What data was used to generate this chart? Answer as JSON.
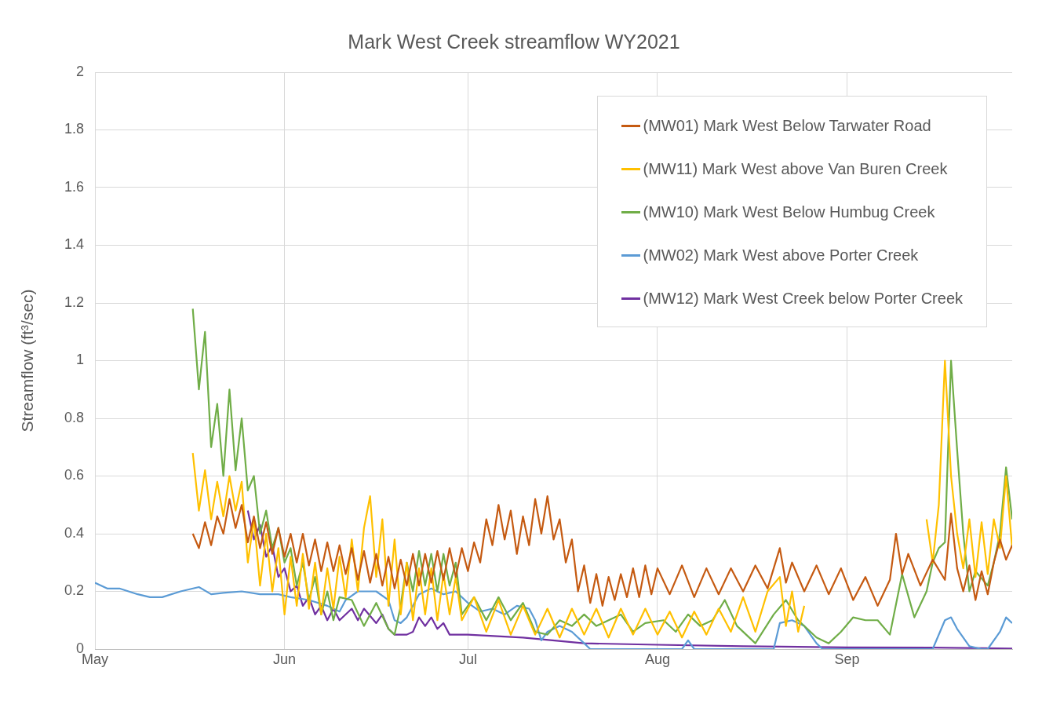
{
  "chart_data": {
    "type": "line",
    "title": "Mark West Creek streamflow WY2021",
    "ylabel": "Streamflow (ft³/sec)",
    "xlim": [
      "2021-05-01",
      "2021-09-28"
    ],
    "xticks": [
      {
        "value": "2021-05-01",
        "label": "May"
      },
      {
        "value": "2021-06-01",
        "label": "Jun"
      },
      {
        "value": "2021-07-01",
        "label": "Jul"
      },
      {
        "value": "2021-08-01",
        "label": "Aug"
      },
      {
        "value": "2021-09-01",
        "label": "Sep"
      }
    ],
    "ylim": [
      0,
      2
    ],
    "yticks": [
      0,
      0.2,
      0.4,
      0.6,
      0.8,
      1,
      1.2,
      1.4,
      1.6,
      1.8,
      2
    ],
    "grid": true,
    "legend": "top right",
    "marker": "none",
    "line_style": "solid",
    "series": [
      {
        "name": "(MW01) Mark West Below Tarwater Road",
        "color": "#c55a11",
        "x": [
          "2021-05-17",
          "2021-05-18",
          "2021-05-19",
          "2021-05-20",
          "2021-05-21",
          "2021-05-22",
          "2021-05-23",
          "2021-05-24",
          "2021-05-25",
          "2021-05-26",
          "2021-05-27",
          "2021-05-28",
          "2021-05-29",
          "2021-05-30",
          "2021-05-31",
          "2021-06-01",
          "2021-06-02",
          "2021-06-03",
          "2021-06-04",
          "2021-06-05",
          "2021-06-06",
          "2021-06-07",
          "2021-06-08",
          "2021-06-09",
          "2021-06-10",
          "2021-06-11",
          "2021-06-12",
          "2021-06-13",
          "2021-06-14",
          "2021-06-15",
          "2021-06-16",
          "2021-06-17",
          "2021-06-18",
          "2021-06-19",
          "2021-06-20",
          "2021-06-21",
          "2021-06-22",
          "2021-06-23",
          "2021-06-24",
          "2021-06-25",
          "2021-06-26",
          "2021-06-27",
          "2021-06-28",
          "2021-06-29",
          "2021-06-30",
          "2021-07-01",
          "2021-07-02",
          "2021-07-03",
          "2021-07-04",
          "2021-07-05",
          "2021-07-06",
          "2021-07-07",
          "2021-07-08",
          "2021-07-09",
          "2021-07-10",
          "2021-07-11",
          "2021-07-12",
          "2021-07-13",
          "2021-07-14",
          "2021-07-15",
          "2021-07-16",
          "2021-07-17",
          "2021-07-18",
          "2021-07-19",
          "2021-07-20",
          "2021-07-21",
          "2021-07-22",
          "2021-07-23",
          "2021-07-24",
          "2021-07-25",
          "2021-07-26",
          "2021-07-27",
          "2021-07-28",
          "2021-07-29",
          "2021-07-30",
          "2021-07-31",
          "2021-08-01",
          "2021-08-03",
          "2021-08-05",
          "2021-08-07",
          "2021-08-09",
          "2021-08-11",
          "2021-08-13",
          "2021-08-15",
          "2021-08-17",
          "2021-08-19",
          "2021-08-21",
          "2021-08-22",
          "2021-08-23",
          "2021-08-25",
          "2021-08-27",
          "2021-08-29",
          "2021-08-31",
          "2021-09-02",
          "2021-09-04",
          "2021-09-06",
          "2021-09-08",
          "2021-09-09",
          "2021-09-10",
          "2021-09-11",
          "2021-09-13",
          "2021-09-15",
          "2021-09-17",
          "2021-09-18",
          "2021-09-19",
          "2021-09-20",
          "2021-09-21",
          "2021-09-22",
          "2021-09-23",
          "2021-09-24",
          "2021-09-25",
          "2021-09-26",
          "2021-09-27",
          "2021-09-28"
        ],
        "values": [
          0.4,
          0.35,
          0.44,
          0.36,
          0.46,
          0.4,
          0.52,
          0.42,
          0.5,
          0.37,
          0.46,
          0.35,
          0.44,
          0.33,
          0.42,
          0.32,
          0.4,
          0.3,
          0.4,
          0.29,
          0.38,
          0.27,
          0.37,
          0.27,
          0.36,
          0.26,
          0.35,
          0.24,
          0.34,
          0.23,
          0.33,
          0.22,
          0.32,
          0.21,
          0.31,
          0.22,
          0.33,
          0.22,
          0.33,
          0.23,
          0.34,
          0.24,
          0.35,
          0.25,
          0.35,
          0.27,
          0.37,
          0.3,
          0.45,
          0.36,
          0.5,
          0.38,
          0.48,
          0.33,
          0.46,
          0.36,
          0.52,
          0.4,
          0.53,
          0.38,
          0.45,
          0.3,
          0.38,
          0.2,
          0.29,
          0.16,
          0.26,
          0.15,
          0.25,
          0.17,
          0.26,
          0.18,
          0.28,
          0.18,
          0.29,
          0.19,
          0.28,
          0.19,
          0.29,
          0.18,
          0.28,
          0.19,
          0.28,
          0.2,
          0.29,
          0.21,
          0.35,
          0.23,
          0.3,
          0.2,
          0.29,
          0.19,
          0.28,
          0.17,
          0.25,
          0.15,
          0.24,
          0.4,
          0.26,
          0.33,
          0.22,
          0.31,
          0.24,
          0.47,
          0.28,
          0.2,
          0.29,
          0.17,
          0.27,
          0.19,
          0.3,
          0.38,
          0.31,
          0.36
        ]
      },
      {
        "name": "(MW11) Mark West above Van Buren Creek",
        "color": "#ffc000",
        "x": [
          "2021-05-17",
          "2021-05-18",
          "2021-05-19",
          "2021-05-20",
          "2021-05-21",
          "2021-05-22",
          "2021-05-23",
          "2021-05-24",
          "2021-05-25",
          "2021-05-26",
          "2021-05-27",
          "2021-05-28",
          "2021-05-29",
          "2021-05-30",
          "2021-05-31",
          "2021-06-01",
          "2021-06-02",
          "2021-06-03",
          "2021-06-04",
          "2021-06-05",
          "2021-06-06",
          "2021-06-07",
          "2021-06-08",
          "2021-06-09",
          "2021-06-10",
          "2021-06-11",
          "2021-06-12",
          "2021-06-13",
          "2021-06-14",
          "2021-06-15",
          "2021-06-16",
          "2021-06-17",
          "2021-06-18",
          "2021-06-19",
          "2021-06-20",
          "2021-06-21",
          "2021-06-22",
          "2021-06-23",
          "2021-06-24",
          "2021-06-25",
          "2021-06-26",
          "2021-06-27",
          "2021-06-28",
          "2021-06-29",
          "2021-06-30",
          "2021-07-02",
          "2021-07-04",
          "2021-07-06",
          "2021-07-08",
          "2021-07-10",
          "2021-07-12",
          "2021-07-14",
          "2021-07-16",
          "2021-07-18",
          "2021-07-20",
          "2021-07-22",
          "2021-07-24",
          "2021-07-26",
          "2021-07-28",
          "2021-07-30",
          "2021-08-01",
          "2021-08-03",
          "2021-08-05",
          "2021-08-07",
          "2021-08-09",
          "2021-08-11",
          "2021-08-13",
          "2021-08-15",
          "2021-08-17",
          "2021-08-19",
          "2021-08-21",
          "2021-08-22",
          "2021-08-23",
          "2021-08-24",
          "2021-08-25",
          "2021-09-01",
          "2021-09-14",
          "2021-09-15",
          "2021-09-16",
          "2021-09-17",
          "2021-09-18",
          "2021-09-19",
          "2021-09-20",
          "2021-09-21",
          "2021-09-22",
          "2021-09-23",
          "2021-09-24",
          "2021-09-25",
          "2021-09-26",
          "2021-09-27",
          "2021-09-28"
        ],
        "values": [
          0.68,
          0.48,
          0.62,
          0.45,
          0.58,
          0.46,
          0.6,
          0.48,
          0.58,
          0.3,
          0.45,
          0.22,
          0.4,
          0.2,
          0.35,
          0.12,
          0.32,
          0.15,
          0.33,
          0.14,
          0.3,
          0.12,
          0.28,
          0.14,
          0.32,
          0.18,
          0.38,
          0.2,
          0.42,
          0.53,
          0.25,
          0.45,
          0.15,
          0.38,
          0.12,
          0.3,
          0.1,
          0.28,
          0.12,
          0.28,
          0.1,
          0.26,
          0.12,
          0.25,
          0.1,
          0.18,
          0.06,
          0.17,
          0.05,
          0.15,
          0.05,
          0.14,
          0.04,
          0.14,
          0.05,
          0.14,
          0.04,
          0.14,
          0.05,
          0.14,
          0.05,
          0.13,
          0.04,
          0.13,
          0.05,
          0.14,
          0.06,
          0.18,
          0.06,
          0.2,
          0.25,
          0.08,
          0.2,
          0.06,
          0.15,
          null,
          0.45,
          0.3,
          0.5,
          1.0,
          0.6,
          0.4,
          0.28,
          0.45,
          0.25,
          0.44,
          0.26,
          0.45,
          0.35,
          0.6,
          0.35
        ]
      },
      {
        "name": "(MW10) Mark West Below Humbug Creek",
        "color": "#70ad47",
        "x": [
          "2021-05-17",
          "2021-05-18",
          "2021-05-19",
          "2021-05-20",
          "2021-05-21",
          "2021-05-22",
          "2021-05-23",
          "2021-05-24",
          "2021-05-25",
          "2021-05-26",
          "2021-05-27",
          "2021-05-28",
          "2021-05-29",
          "2021-05-30",
          "2021-05-31",
          "2021-06-01",
          "2021-06-02",
          "2021-06-03",
          "2021-06-04",
          "2021-06-05",
          "2021-06-06",
          "2021-06-07",
          "2021-06-08",
          "2021-06-09",
          "2021-06-10",
          "2021-06-12",
          "2021-06-14",
          "2021-06-16",
          "2021-06-18",
          "2021-06-19",
          "2021-06-20",
          "2021-06-21",
          "2021-06-22",
          "2021-06-23",
          "2021-06-24",
          "2021-06-25",
          "2021-06-26",
          "2021-06-27",
          "2021-06-28",
          "2021-06-29",
          "2021-06-30",
          "2021-07-02",
          "2021-07-04",
          "2021-07-06",
          "2021-07-08",
          "2021-07-10",
          "2021-07-12",
          "2021-07-14",
          "2021-07-16",
          "2021-07-18",
          "2021-07-20",
          "2021-07-22",
          "2021-07-24",
          "2021-07-26",
          "2021-07-28",
          "2021-07-30",
          "2021-08-02",
          "2021-08-04",
          "2021-08-06",
          "2021-08-08",
          "2021-08-10",
          "2021-08-12",
          "2021-08-14",
          "2021-08-17",
          "2021-08-20",
          "2021-08-22",
          "2021-08-24",
          "2021-08-27",
          "2021-08-29",
          "2021-08-31",
          "2021-09-02",
          "2021-09-04",
          "2021-09-06",
          "2021-09-08",
          "2021-09-10",
          "2021-09-12",
          "2021-09-14",
          "2021-09-15",
          "2021-09-16",
          "2021-09-17",
          "2021-09-18",
          "2021-09-19",
          "2021-09-20",
          "2021-09-21",
          "2021-09-22",
          "2021-09-24",
          "2021-09-25",
          "2021-09-26",
          "2021-09-27",
          "2021-09-28"
        ],
        "values": [
          1.18,
          0.9,
          1.1,
          0.7,
          0.85,
          0.6,
          0.9,
          0.62,
          0.8,
          0.55,
          0.6,
          0.4,
          0.48,
          0.35,
          0.42,
          0.3,
          0.35,
          0.22,
          0.3,
          0.17,
          0.25,
          0.12,
          0.2,
          0.1,
          0.18,
          0.17,
          0.08,
          0.16,
          0.07,
          0.05,
          0.15,
          0.3,
          0.2,
          0.34,
          0.22,
          0.33,
          0.2,
          0.33,
          0.22,
          0.3,
          0.12,
          0.18,
          0.1,
          0.18,
          0.1,
          0.16,
          0.06,
          0.05,
          0.1,
          0.08,
          0.12,
          0.08,
          0.1,
          0.12,
          0.06,
          0.09,
          0.1,
          0.06,
          0.12,
          0.08,
          0.1,
          0.17,
          0.08,
          0.02,
          0.12,
          0.17,
          0.1,
          0.04,
          0.02,
          0.06,
          0.11,
          0.1,
          0.1,
          0.05,
          0.26,
          0.11,
          0.2,
          0.3,
          0.35,
          0.37,
          1.0,
          0.69,
          0.4,
          0.2,
          0.27,
          0.22,
          0.3,
          0.4,
          0.63,
          0.45
        ]
      },
      {
        "name": "(MW02) Mark West above Porter Creek",
        "color": "#5b9bd5",
        "x": [
          "2021-05-01",
          "2021-05-03",
          "2021-05-05",
          "2021-05-08",
          "2021-05-10",
          "2021-05-12",
          "2021-05-15",
          "2021-05-18",
          "2021-05-20",
          "2021-05-22",
          "2021-05-25",
          "2021-05-28",
          "2021-05-31",
          "2021-06-02",
          "2021-06-05",
          "2021-06-08",
          "2021-06-10",
          "2021-06-11",
          "2021-06-13",
          "2021-06-16",
          "2021-06-18",
          "2021-06-19",
          "2021-06-20",
          "2021-06-21",
          "2021-06-23",
          "2021-06-25",
          "2021-06-27",
          "2021-06-29",
          "2021-07-01",
          "2021-07-03",
          "2021-07-05",
          "2021-07-07",
          "2021-07-09",
          "2021-07-11",
          "2021-07-12",
          "2021-07-13",
          "2021-07-14",
          "2021-07-16",
          "2021-07-18",
          "2021-07-20",
          "2021-07-21",
          "2021-08-01",
          "2021-08-05",
          "2021-08-06",
          "2021-08-07",
          "2021-08-20",
          "2021-08-21",
          "2021-08-23",
          "2021-08-25",
          "2021-08-27",
          "2021-08-28",
          "2021-09-15",
          "2021-09-17",
          "2021-09-18",
          "2021-09-19",
          "2021-09-21",
          "2021-09-23",
          "2021-09-24",
          "2021-09-26",
          "2021-09-27",
          "2021-09-28"
        ],
        "values": [
          0.23,
          0.21,
          0.21,
          0.19,
          0.18,
          0.18,
          0.2,
          0.215,
          0.19,
          0.195,
          0.2,
          0.19,
          0.19,
          0.18,
          0.17,
          0.15,
          0.13,
          0.17,
          0.2,
          0.2,
          0.17,
          0.1,
          0.09,
          0.11,
          0.19,
          0.21,
          0.19,
          0.2,
          0.16,
          0.13,
          0.14,
          0.12,
          0.15,
          0.14,
          0.1,
          0.03,
          0.06,
          0.08,
          0.06,
          0.02,
          0,
          0,
          0,
          0.03,
          0,
          0,
          0.09,
          0.1,
          0.08,
          0.02,
          0,
          0,
          0.1,
          0.11,
          0.07,
          0.01,
          0,
          0,
          0.06,
          0.11,
          0.09
        ]
      },
      {
        "name": "(MW12) Mark West Creek below Porter Creek",
        "color": "#7030a0",
        "x": [
          "2021-05-26",
          "2021-05-27",
          "2021-05-28",
          "2021-05-29",
          "2021-05-30",
          "2021-05-31",
          "2021-06-01",
          "2021-06-02",
          "2021-06-03",
          "2021-06-04",
          "2021-06-05",
          "2021-06-06",
          "2021-06-07",
          "2021-06-08",
          "2021-06-09",
          "2021-06-10",
          "2021-06-12",
          "2021-06-13",
          "2021-06-14",
          "2021-06-16",
          "2021-06-17",
          "2021-06-18",
          "2021-06-19",
          "2021-06-21",
          "2021-06-22",
          "2021-06-23",
          "2021-06-24",
          "2021-06-25",
          "2021-06-26",
          "2021-06-27",
          "2021-06-28",
          "2021-07-01",
          "2021-07-10",
          "2021-07-20",
          "2021-08-01",
          "2021-08-15",
          "2021-09-01",
          "2021-09-15",
          "2021-09-28"
        ],
        "values": [
          0.48,
          0.38,
          0.43,
          0.32,
          0.36,
          0.25,
          0.28,
          0.2,
          0.22,
          0.15,
          0.18,
          0.12,
          0.15,
          0.1,
          0.14,
          0.1,
          0.14,
          0.1,
          0.14,
          0.09,
          0.12,
          0.07,
          0.05,
          0.05,
          0.06,
          0.11,
          0.08,
          0.11,
          0.07,
          0.09,
          0.05,
          0.05,
          0.04,
          0.02,
          0.015,
          0.01,
          0.006,
          0.005,
          0.002
        ]
      }
    ]
  }
}
